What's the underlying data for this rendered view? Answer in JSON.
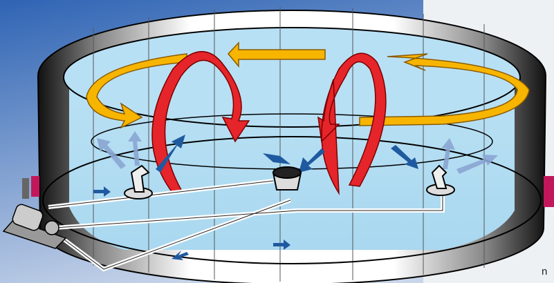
{
  "caption": "n"
}
